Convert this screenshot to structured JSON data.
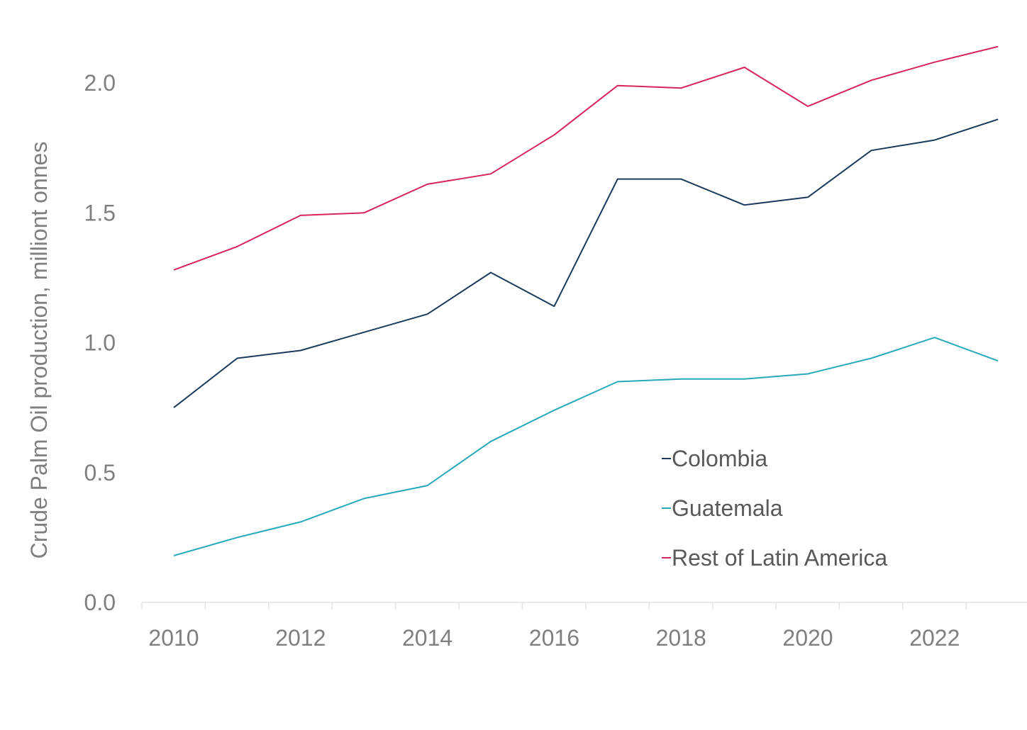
{
  "chart_data": {
    "type": "line",
    "title": "",
    "xlabel": "",
    "ylabel": "Crude Palm Oil production, milliont onnes",
    "x": [
      2010,
      2011,
      2012,
      2013,
      2014,
      2015,
      2016,
      2017,
      2018,
      2019,
      2020,
      2021,
      2022,
      2023
    ],
    "x_tick_labels": [
      "2010",
      "2012",
      "2014",
      "2016",
      "2018",
      "2020",
      "2022"
    ],
    "x_tick_values": [
      2010,
      2012,
      2014,
      2016,
      2018,
      2020,
      2022
    ],
    "y_tick_labels": [
      "0.0",
      "0.5",
      "1.0",
      "1.5",
      "2.0"
    ],
    "y_tick_values": [
      0,
      0.5,
      1.0,
      1.5,
      2.0
    ],
    "ylim": [
      0,
      2.0
    ],
    "grid": false,
    "legend_position": "bottom-right",
    "series": [
      {
        "name": "Colombia",
        "color": "#1a3a5c",
        "values": [
          0.75,
          0.94,
          0.97,
          1.04,
          1.11,
          1.27,
          1.14,
          1.63,
          1.63,
          1.53,
          1.56,
          1.74,
          1.78,
          1.86
        ]
      },
      {
        "name": "Guatemala",
        "color": "#27a9b9",
        "values": [
          0.18,
          0.25,
          0.31,
          0.4,
          0.45,
          0.62,
          0.74,
          0.85,
          0.86,
          0.86,
          0.88,
          0.94,
          1.02,
          0.93
        ]
      },
      {
        "name": "Rest of Latin America",
        "color": "#d6245b",
        "values": [
          1.28,
          1.37,
          1.49,
          1.5,
          1.61,
          1.65,
          1.8,
          1.99,
          1.98,
          2.06,
          1.91,
          2.01,
          2.08,
          2.14
        ]
      }
    ]
  }
}
